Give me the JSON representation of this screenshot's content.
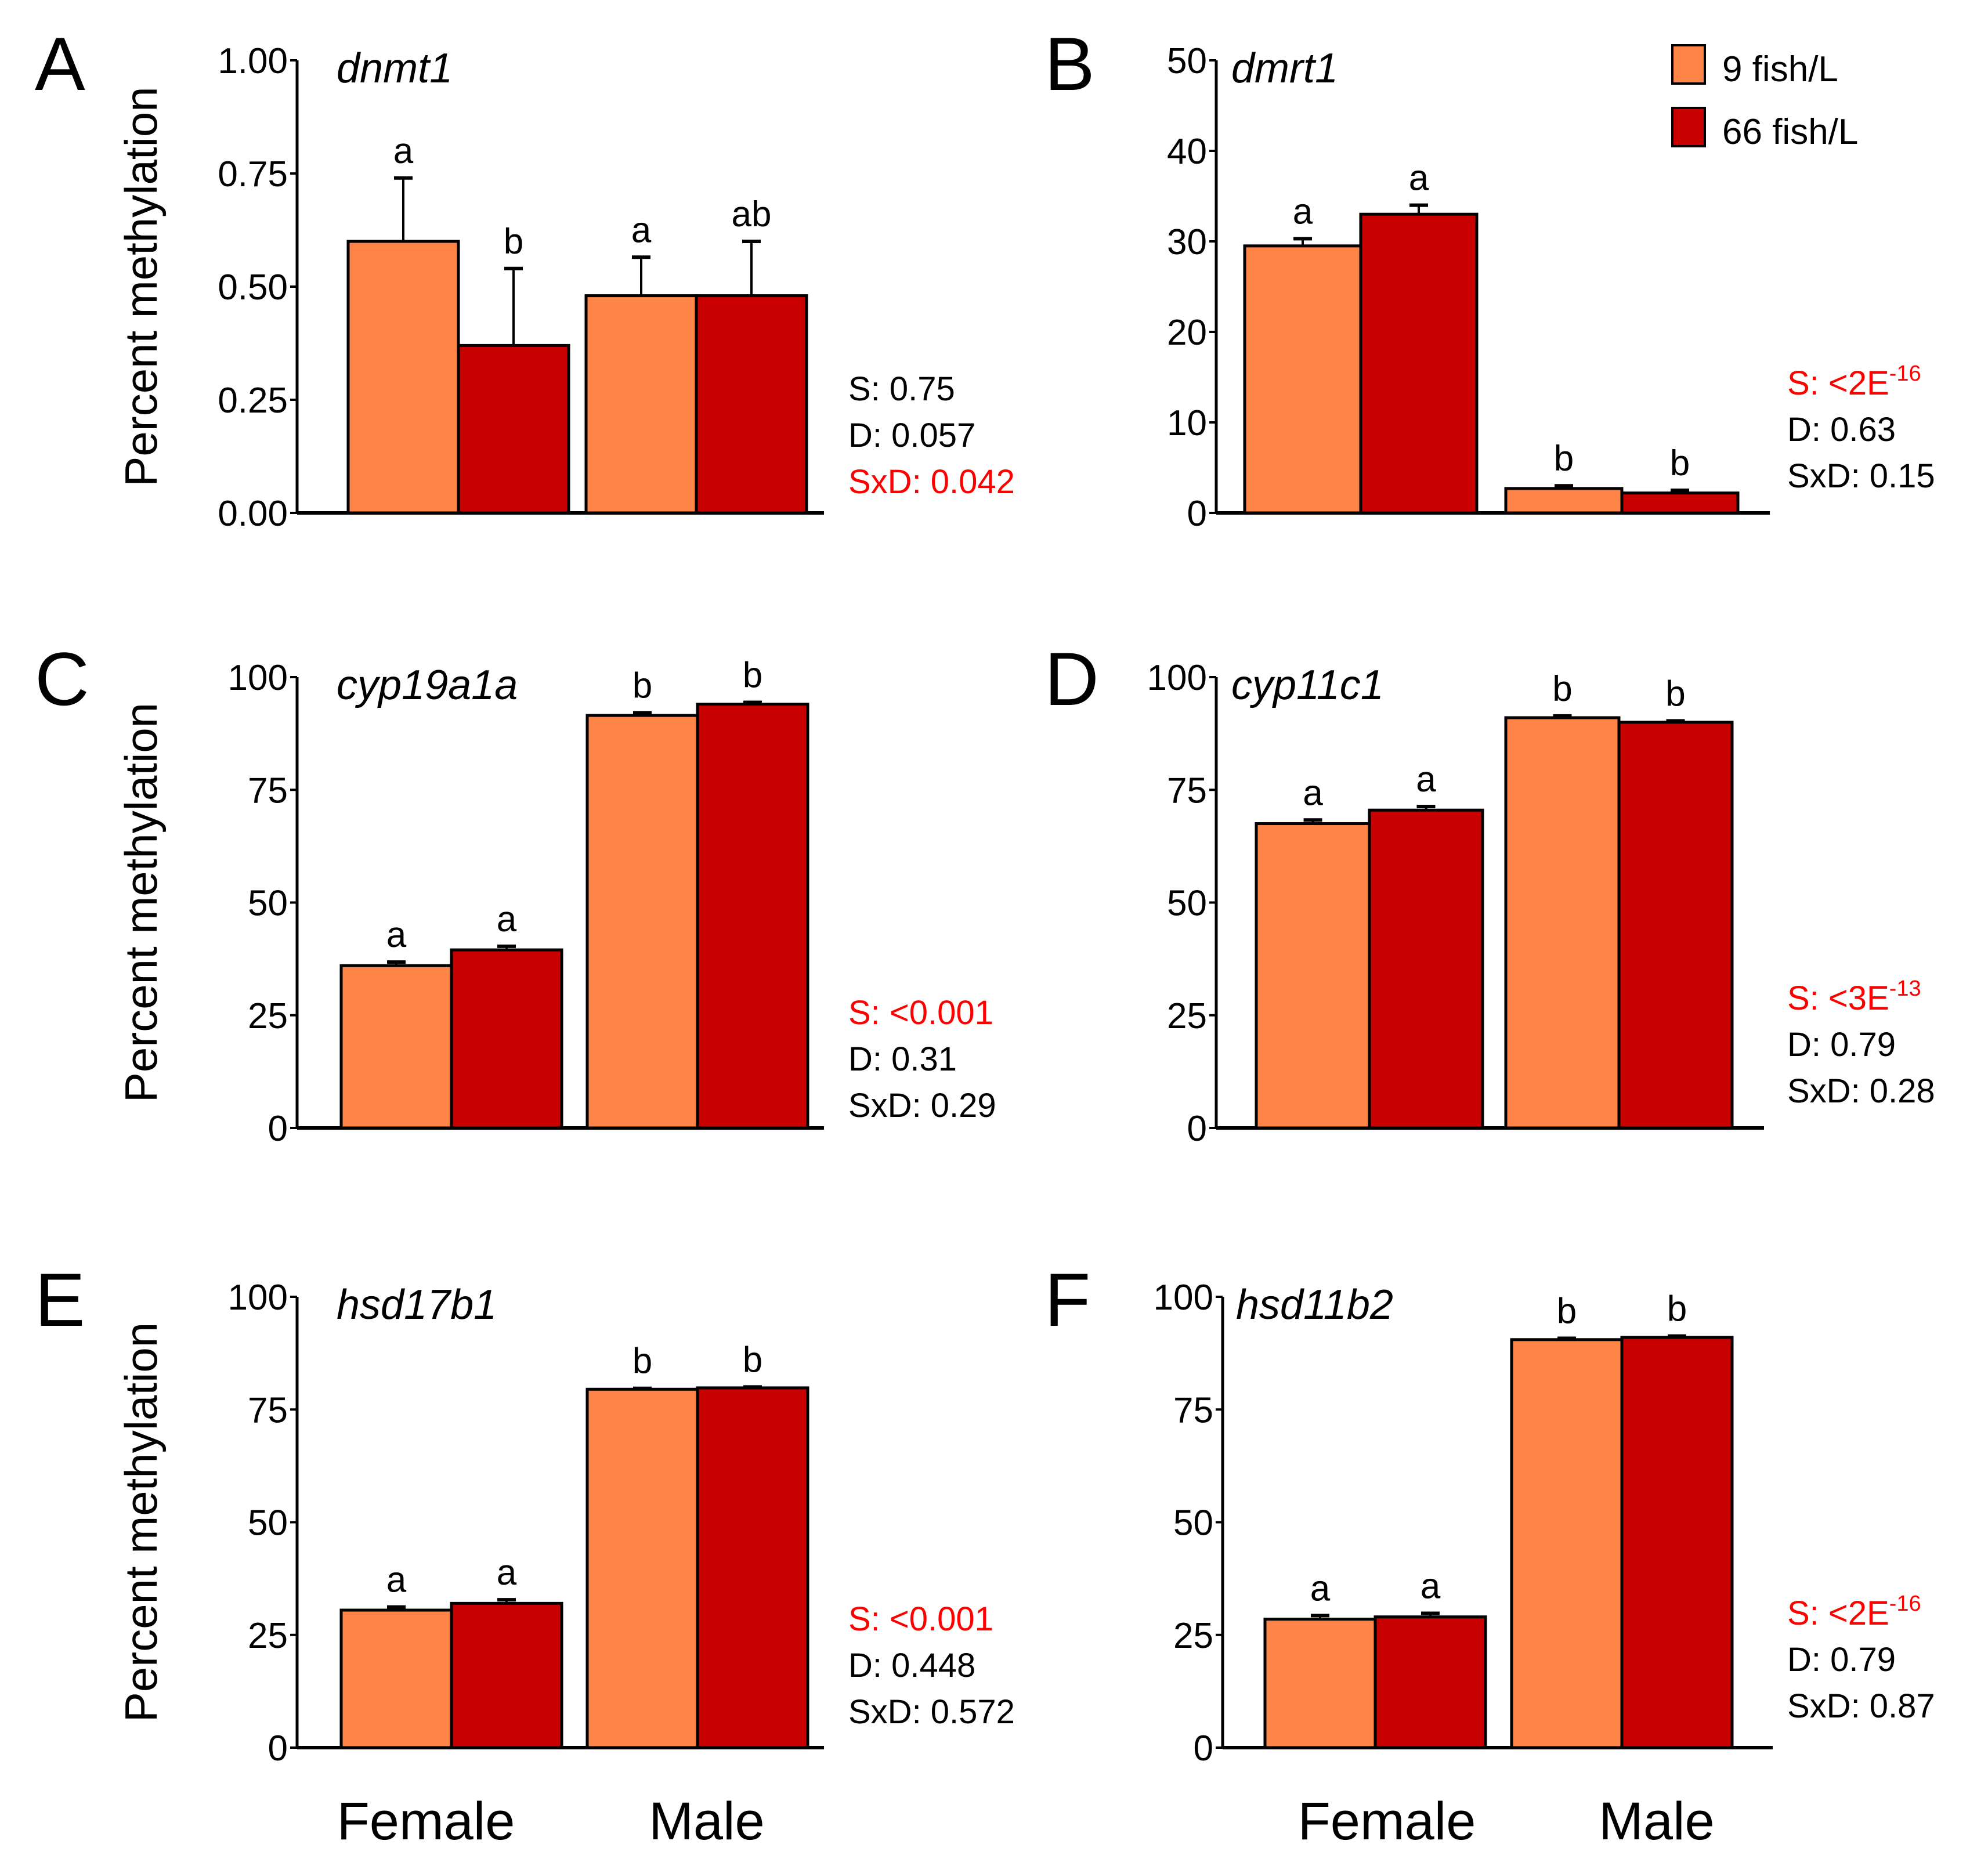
{
  "figure": {
    "legend": {
      "items": [
        {
          "label": "9 fish/L",
          "color": "#FF8447"
        },
        {
          "label": "66 fish/L",
          "color": "#C80000"
        }
      ]
    },
    "x_group_labels": [
      "Female",
      "Male"
    ],
    "ylabel": "Percent methylation",
    "colors": {
      "low_density": "#FF8447",
      "high_density": "#C80000",
      "significant_text": "#FF0000",
      "text": "#000000"
    }
  },
  "chart_data": [
    {
      "panel": "A",
      "type": "bar",
      "title": "dnmt1",
      "ylabel": "Percent methylation",
      "ylim": [
        0,
        1
      ],
      "yticks": [
        "0.00",
        "0.25",
        "0.50",
        "0.75",
        "1.00"
      ],
      "categories": [
        "Female",
        "Male"
      ],
      "series": [
        {
          "name": "9 fish/L",
          "values": [
            0.6,
            0.48
          ],
          "errors": [
            0.14,
            0.085
          ],
          "letters": [
            "a",
            "a"
          ]
        },
        {
          "name": "66 fish/L",
          "values": [
            0.37,
            0.48
          ],
          "errors": [
            0.17,
            0.12
          ],
          "letters": [
            "b",
            "ab"
          ]
        }
      ],
      "stats": [
        {
          "text": "S: 0.75",
          "significant": false
        },
        {
          "text": "D: 0.057",
          "significant": false
        },
        {
          "text": "SxD: 0.042",
          "significant": true
        }
      ]
    },
    {
      "panel": "B",
      "type": "bar",
      "title": "dmrt1",
      "ylabel": "",
      "ylim": [
        0,
        50
      ],
      "yticks": [
        "0",
        "10",
        "20",
        "30",
        "40",
        "50"
      ],
      "categories": [
        "Female",
        "Male"
      ],
      "series": [
        {
          "name": "9 fish/L",
          "values": [
            29.5,
            2.7
          ],
          "errors": [
            0.8,
            0.3
          ],
          "letters": [
            "a",
            "b"
          ]
        },
        {
          "name": "66 fish/L",
          "values": [
            33.0,
            2.2
          ],
          "errors": [
            1.0,
            0.3
          ],
          "letters": [
            "a",
            "b"
          ]
        }
      ],
      "stats": [
        {
          "text": "S: <2E",
          "sup": "-16",
          "significant": true
        },
        {
          "text": "D: 0.63",
          "significant": false
        },
        {
          "text": "SxD: 0.15",
          "significant": false
        }
      ]
    },
    {
      "panel": "C",
      "type": "bar",
      "title": "cyp19a1a",
      "ylabel": "Percent methylation",
      "ylim": [
        0,
        100
      ],
      "yticks": [
        "0",
        "25",
        "50",
        "75",
        "100"
      ],
      "categories": [
        "Female",
        "Male"
      ],
      "series": [
        {
          "name": "9 fish/L",
          "values": [
            36.0,
            91.5
          ],
          "errors": [
            0.8,
            0.6
          ],
          "letters": [
            "a",
            "b"
          ]
        },
        {
          "name": "66 fish/L",
          "values": [
            39.5,
            94.0
          ],
          "errors": [
            0.8,
            0.4
          ],
          "letters": [
            "a",
            "b"
          ]
        }
      ],
      "stats": [
        {
          "text": "S: <0.001",
          "significant": true
        },
        {
          "text": "D: 0.31",
          "significant": false
        },
        {
          "text": "SxD: 0.29",
          "significant": false
        }
      ]
    },
    {
      "panel": "D",
      "type": "bar",
      "title": "cyp11c1",
      "ylabel": "",
      "ylim": [
        0,
        100
      ],
      "yticks": [
        "0",
        "25",
        "50",
        "75",
        "100"
      ],
      "categories": [
        "Female",
        "Male"
      ],
      "series": [
        {
          "name": "9 fish/L",
          "values": [
            67.5,
            91.0
          ],
          "errors": [
            0.8,
            0.4
          ],
          "letters": [
            "a",
            "b"
          ]
        },
        {
          "name": "66 fish/L",
          "values": [
            70.5,
            90.0
          ],
          "errors": [
            0.8,
            0.3
          ],
          "letters": [
            "a",
            "b"
          ]
        }
      ],
      "stats": [
        {
          "text": "S: <3E",
          "sup": "-13",
          "significant": true
        },
        {
          "text": "D: 0.79",
          "significant": false
        },
        {
          "text": "SxD: 0.28",
          "significant": false
        }
      ]
    },
    {
      "panel": "E",
      "type": "bar",
      "title": "hsd17b1",
      "ylabel": "Percent methylation",
      "ylim": [
        0,
        100
      ],
      "yticks": [
        "0",
        "25",
        "50",
        "75",
        "100"
      ],
      "categories": [
        "Female",
        "Male"
      ],
      "series": [
        {
          "name": "9 fish/L",
          "values": [
            30.5,
            79.5
          ],
          "errors": [
            0.7,
            0.2
          ],
          "letters": [
            "a",
            "b"
          ]
        },
        {
          "name": "66 fish/L",
          "values": [
            32.0,
            79.8
          ],
          "errors": [
            0.8,
            0.2
          ],
          "letters": [
            "a",
            "b"
          ]
        }
      ],
      "stats": [
        {
          "text": "S: <0.001",
          "significant": true
        },
        {
          "text": "D: 0.448",
          "significant": false
        },
        {
          "text": "SxD: 0.572",
          "significant": false
        }
      ]
    },
    {
      "panel": "F",
      "type": "bar",
      "title": "hsd11b2",
      "ylabel": "",
      "ylim": [
        0,
        100
      ],
      "yticks": [
        "0",
        "25",
        "50",
        "75",
        "100"
      ],
      "categories": [
        "Female",
        "Male"
      ],
      "series": [
        {
          "name": "9 fish/L",
          "values": [
            28.5,
            90.5
          ],
          "errors": [
            0.8,
            0.3
          ],
          "letters": [
            "a",
            "b"
          ]
        },
        {
          "name": "66 fish/L",
          "values": [
            29.0,
            91.0
          ],
          "errors": [
            0.8,
            0.3
          ],
          "letters": [
            "a",
            "b"
          ]
        }
      ],
      "stats": [
        {
          "text": "S: <2E",
          "sup": "-16",
          "significant": true
        },
        {
          "text": "D: 0.79",
          "significant": false
        },
        {
          "text": "SxD: 0.87",
          "significant": false
        }
      ]
    }
  ]
}
